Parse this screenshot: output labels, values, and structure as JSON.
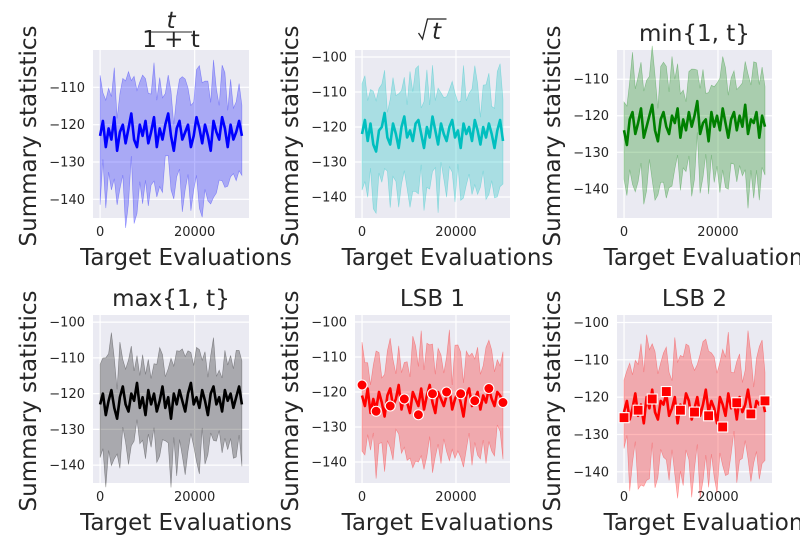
{
  "figure": {
    "ylabel": "Summary statistics",
    "xlabel": "Target Evaluations"
  },
  "chart_data": [
    {
      "type": "line",
      "title": "t/(1+t)",
      "title_num": "t",
      "title_den": "1 + t",
      "title_style": "fraction",
      "color": "#0000ff",
      "band": true,
      "marker": "none",
      "xlim": [
        -1500,
        31500
      ],
      "ylim": [
        -145,
        -100
      ],
      "xticks": [
        0,
        20000
      ],
      "yticks": [
        -140,
        -130,
        -120,
        -110
      ],
      "x": [
        0,
        600,
        1200,
        1800,
        2400,
        3000,
        3600,
        4200,
        4800,
        5400,
        6000,
        6600,
        7200,
        7800,
        8400,
        9000,
        9600,
        10200,
        10800,
        11400,
        12000,
        12600,
        13200,
        13800,
        14400,
        15000,
        15600,
        16200,
        16800,
        17400,
        18000,
        18600,
        19200,
        19800,
        20400,
        21000,
        21600,
        22200,
        22800,
        23400,
        24000,
        24600,
        25200,
        25800,
        26400,
        27000,
        27600,
        28200,
        28800,
        29400,
        30000
      ],
      "y": [
        -123,
        -119,
        -126,
        -121,
        -124,
        -118,
        -127,
        -122,
        -120,
        -125,
        -121,
        -117,
        -124,
        -126,
        -120,
        -123,
        -119,
        -125,
        -122,
        -118,
        -126,
        -121,
        -124,
        -120,
        -117,
        -123,
        -127,
        -121,
        -119,
        -124,
        -122,
        -120,
        -126,
        -123,
        -118,
        -121,
        -125,
        -120,
        -123,
        -127,
        -119,
        -122,
        -124,
        -118,
        -121,
        -126,
        -120,
        -124,
        -122,
        -119,
        -123
      ]
    },
    {
      "type": "line",
      "title": "√t",
      "title_style": "sqrt",
      "title_arg": "t",
      "color": "#00bfbf",
      "band": true,
      "marker": "none",
      "xlim": [
        -1500,
        31500
      ],
      "ylim": [
        -146,
        -98
      ],
      "xticks": [
        0,
        20000
      ],
      "yticks": [
        -140,
        -130,
        -120,
        -110,
        -100
      ],
      "x": [
        0,
        600,
        1200,
        1800,
        2400,
        3000,
        3600,
        4200,
        4800,
        5400,
        6000,
        6600,
        7200,
        7800,
        8400,
        9000,
        9600,
        10200,
        10800,
        11400,
        12000,
        12600,
        13200,
        13800,
        14400,
        15000,
        15600,
        16200,
        16800,
        17400,
        18000,
        18600,
        19200,
        19800,
        20400,
        21000,
        21600,
        22200,
        22800,
        23400,
        24000,
        24600,
        25200,
        25800,
        26400,
        27000,
        27600,
        28200,
        28800,
        29400,
        30000
      ],
      "y": [
        -122,
        -118,
        -124,
        -119,
        -125,
        -127,
        -121,
        -120,
        -116,
        -123,
        -125,
        -119,
        -122,
        -126,
        -120,
        -117,
        -123,
        -121,
        -124,
        -119,
        -118,
        -122,
        -126,
        -120,
        -123,
        -117,
        -121,
        -125,
        -119,
        -122,
        -124,
        -120,
        -118,
        -123,
        -121,
        -126,
        -119,
        -122,
        -120,
        -124,
        -118,
        -121,
        -125,
        -120,
        -123,
        -119,
        -122,
        -126,
        -121,
        -118,
        -124
      ]
    },
    {
      "type": "line",
      "title": "min{1, t}",
      "title_style": "plain",
      "color": "#008000",
      "band": true,
      "marker": "none",
      "xlim": [
        -1500,
        31500
      ],
      "ylim": [
        -148,
        -102
      ],
      "xticks": [
        0,
        20000
      ],
      "yticks": [
        -140,
        -130,
        -120,
        -110
      ],
      "x": [
        0,
        600,
        1200,
        1800,
        2400,
        3000,
        3600,
        4200,
        4800,
        5400,
        6000,
        6600,
        7200,
        7800,
        8400,
        9000,
        9600,
        10200,
        10800,
        11400,
        12000,
        12600,
        13200,
        13800,
        14400,
        15000,
        15600,
        16200,
        16800,
        17400,
        18000,
        18600,
        19200,
        19800,
        20400,
        21000,
        21600,
        22200,
        22800,
        23400,
        24000,
        24600,
        25200,
        25800,
        26400,
        27000,
        27600,
        28200,
        28800,
        29400,
        30000
      ],
      "y": [
        -124,
        -128,
        -121,
        -119,
        -125,
        -122,
        -118,
        -126,
        -123,
        -120,
        -117,
        -124,
        -127,
        -121,
        -119,
        -123,
        -125,
        -120,
        -122,
        -118,
        -126,
        -121,
        -124,
        -119,
        -123,
        -120,
        -116,
        -125,
        -122,
        -121,
        -127,
        -119,
        -123,
        -120,
        -124,
        -118,
        -122,
        -126,
        -121,
        -119,
        -124,
        -120,
        -123,
        -117,
        -125,
        -121,
        -122,
        -119,
        -126,
        -120,
        -123
      ]
    },
    {
      "type": "line",
      "title": "max{1, t}",
      "title_style": "plain",
      "color": "#000000",
      "band": true,
      "marker": "none",
      "xlim": [
        -1500,
        31500
      ],
      "ylim": [
        -145,
        -98
      ],
      "xticks": [
        0,
        20000
      ],
      "yticks": [
        -140,
        -130,
        -120,
        -110,
        -100
      ],
      "x": [
        0,
        600,
        1200,
        1800,
        2400,
        3000,
        3600,
        4200,
        4800,
        5400,
        6000,
        6600,
        7200,
        7800,
        8400,
        9000,
        9600,
        10200,
        10800,
        11400,
        12000,
        12600,
        13200,
        13800,
        14400,
        15000,
        15600,
        16200,
        16800,
        17400,
        18000,
        18600,
        19200,
        19800,
        20400,
        21000,
        21600,
        22200,
        22800,
        23400,
        24000,
        24600,
        25200,
        25800,
        26400,
        27000,
        27600,
        28200,
        28800,
        29400,
        30000
      ],
      "y": [
        -123,
        -120,
        -126,
        -122,
        -119,
        -124,
        -127,
        -121,
        -118,
        -123,
        -125,
        -120,
        -122,
        -117,
        -124,
        -121,
        -126,
        -119,
        -123,
        -120,
        -125,
        -122,
        -118,
        -124,
        -121,
        -127,
        -120,
        -123,
        -119,
        -122,
        -125,
        -120,
        -117,
        -123,
        -121,
        -124,
        -119,
        -122,
        -126,
        -120,
        -118,
        -123,
        -121,
        -125,
        -119,
        -122,
        -120,
        -124,
        -121,
        -118,
        -123
      ]
    },
    {
      "type": "line",
      "title": "LSB 1",
      "title_style": "plain",
      "color": "#ff0000",
      "band": true,
      "marker": "circle",
      "xlim": [
        -1500,
        31500
      ],
      "ylim": [
        -146,
        -98
      ],
      "xticks": [
        0,
        20000
      ],
      "yticks": [
        -140,
        -130,
        -120,
        -110,
        -100
      ],
      "x": [
        0,
        600,
        1200,
        1800,
        2400,
        3000,
        3600,
        4200,
        4800,
        5400,
        6000,
        6600,
        7200,
        7800,
        8400,
        9000,
        9600,
        10200,
        10800,
        11400,
        12000,
        12600,
        13200,
        13800,
        14400,
        15000,
        15600,
        16200,
        16800,
        17400,
        18000,
        18600,
        19200,
        19800,
        20400,
        21000,
        21600,
        22200,
        22800,
        23400,
        24000,
        24600,
        25200,
        25800,
        26400,
        27000,
        27600,
        28200,
        28800,
        29400,
        30000
      ],
      "y": [
        -121,
        -124,
        -119,
        -126,
        -122,
        -125,
        -120,
        -123,
        -127,
        -121,
        -119,
        -124,
        -122,
        -118,
        -125,
        -121,
        -123,
        -126,
        -120,
        -122,
        -124,
        -119,
        -125,
        -121,
        -118,
        -123,
        -126,
        -120,
        -122,
        -124,
        -121,
        -119,
        -125,
        -122,
        -120,
        -123,
        -127,
        -121,
        -119,
        -124,
        -122,
        -120,
        -125,
        -121,
        -123,
        -119,
        -122,
        -124,
        -120,
        -121,
        -123
      ],
      "markers": {
        "x": [
          0,
          3000,
          6000,
          9000,
          12000,
          15000,
          18000,
          21000,
          24000,
          27000,
          30000
        ],
        "y": [
          -118,
          -125.5,
          -124,
          -122,
          -126.5,
          -120.5,
          -120,
          -120.5,
          -122.5,
          -119,
          -123
        ]
      }
    },
    {
      "type": "line",
      "title": "LSB 2",
      "title_style": "plain",
      "color": "#ff0000",
      "band": true,
      "marker": "square",
      "xlim": [
        -1500,
        31500
      ],
      "ylim": [
        -143,
        -98
      ],
      "xticks": [
        0,
        20000
      ],
      "yticks": [
        -140,
        -130,
        -120,
        -110,
        -100
      ],
      "x": [
        0,
        600,
        1200,
        1800,
        2400,
        3000,
        3600,
        4200,
        4800,
        5400,
        6000,
        6600,
        7200,
        7800,
        8400,
        9000,
        9600,
        10200,
        10800,
        11400,
        12000,
        12600,
        13200,
        13800,
        14400,
        15000,
        15600,
        16200,
        16800,
        17400,
        18000,
        18600,
        19200,
        19800,
        20400,
        21000,
        21600,
        22200,
        22800,
        23400,
        24000,
        24600,
        25200,
        25800,
        26400,
        27000,
        27600,
        28200,
        28800,
        29400,
        30000
      ],
      "y": [
        -124,
        -121,
        -126,
        -123,
        -119,
        -125,
        -122,
        -127,
        -120,
        -123,
        -118,
        -124,
        -126,
        -121,
        -122,
        -119,
        -125,
        -123,
        -120,
        -127,
        -122,
        -124,
        -119,
        -121,
        -126,
        -123,
        -120,
        -125,
        -122,
        -118,
        -124,
        -121,
        -123,
        -127,
        -120,
        -122,
        -125,
        -119,
        -123,
        -121,
        -126,
        -120,
        -124,
        -122,
        -118,
        -123,
        -125,
        -121,
        -122,
        -120,
        -124
      ],
      "markers": {
        "x": [
          0,
          3000,
          6000,
          9000,
          12000,
          15000,
          18000,
          21000,
          24000,
          27000,
          30000
        ],
        "y": [
          -125.5,
          -123.5,
          -120.5,
          -118.5,
          -123.5,
          -124,
          -125,
          -128,
          -121.5,
          -124.5,
          -121
        ]
      }
    }
  ]
}
